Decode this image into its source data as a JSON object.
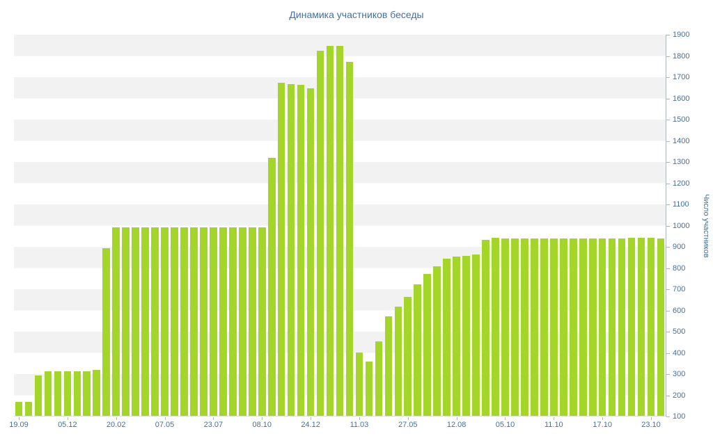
{
  "page": {
    "background": "#ffffff"
  },
  "chart_data": {
    "type": "bar",
    "title": "Динамика участников беседы",
    "xlabel": "",
    "ylabel": "Число участников",
    "ylim": [
      100,
      1900
    ],
    "ytick_step": 100,
    "y_tick_labels": [
      1900,
      1800,
      1700,
      1600,
      1500,
      1400,
      1300,
      1200,
      1100,
      1000,
      900,
      800,
      700,
      600,
      500,
      400,
      300,
      200,
      100
    ],
    "x_tick_labels": [
      "19.09",
      "05.12",
      "20.02",
      "07.05",
      "23.07",
      "08.10",
      "24.12",
      "11.03",
      "27.05",
      "12.08",
      "05.10",
      "11.10",
      "17.10",
      "23.10"
    ],
    "x_tick_every": 5,
    "grid": "horizontal-bands",
    "legend": "none",
    "bar_color": "#a4d62a",
    "stripe_color": "#f2f2f2",
    "text_color": "#44709d",
    "axis_color": "#a8b7c0",
    "values": [
      165,
      165,
      290,
      310,
      310,
      310,
      310,
      310,
      315,
      890,
      990,
      990,
      990,
      990,
      990,
      990,
      990,
      990,
      990,
      990,
      990,
      990,
      990,
      990,
      990,
      990,
      1315,
      1670,
      1665,
      1660,
      1645,
      1820,
      1845,
      1845,
      1770,
      400,
      355,
      450,
      570,
      615,
      660,
      720,
      770,
      805,
      840,
      850,
      855,
      860,
      930,
      940,
      935,
      935,
      935,
      935,
      935,
      935,
      935,
      935,
      935,
      935,
      935,
      935,
      935,
      940,
      940,
      940,
      935
    ]
  }
}
